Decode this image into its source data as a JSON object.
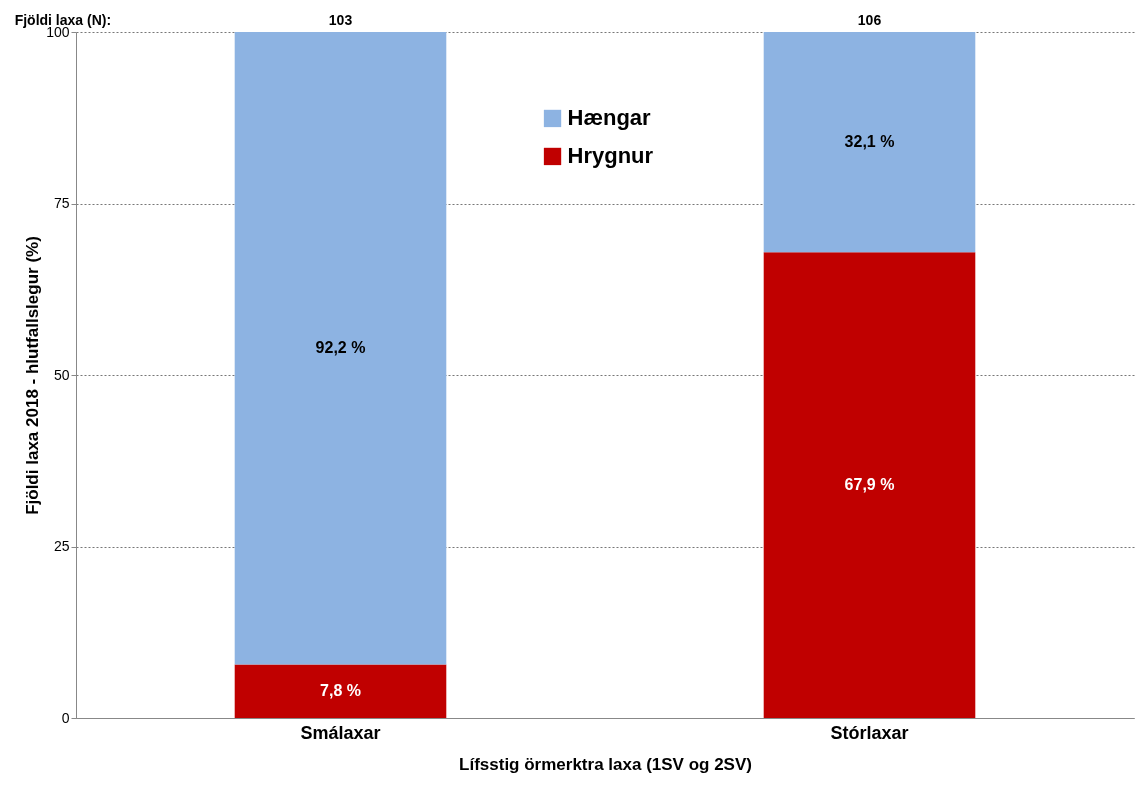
{
  "chart_data": {
    "type": "bar",
    "stacked": true,
    "xlabel": "Lífsstig örmerktra laxa (1SV og 2SV)",
    "ylabel": "Fjöldi laxa 2018 - hlutfallslegur (%)",
    "categories": [
      "Smálaxar",
      "Stórlaxar"
    ],
    "series": [
      {
        "name": "Hrygnur",
        "color": "#c00000",
        "values": [
          7.8,
          67.9
        ],
        "value_labels": [
          "7,8 %",
          "67,9 %"
        ]
      },
      {
        "name": "Hængar",
        "color": "#8db3e2",
        "values": [
          92.2,
          32.1
        ],
        "value_labels": [
          "92,2 %",
          "32,1 %"
        ]
      }
    ],
    "annotations": [
      "Fjöldi laxa (N):",
      {
        "text": "103",
        "x": "Smálaxar",
        "y": 100
      },
      {
        "text": "106",
        "x": "Stórlaxar",
        "y": 100
      }
    ],
    "ylim": [
      0,
      100
    ],
    "yticks": [
      0,
      25,
      50,
      75,
      100
    ],
    "grid": "y",
    "legend": "top"
  }
}
